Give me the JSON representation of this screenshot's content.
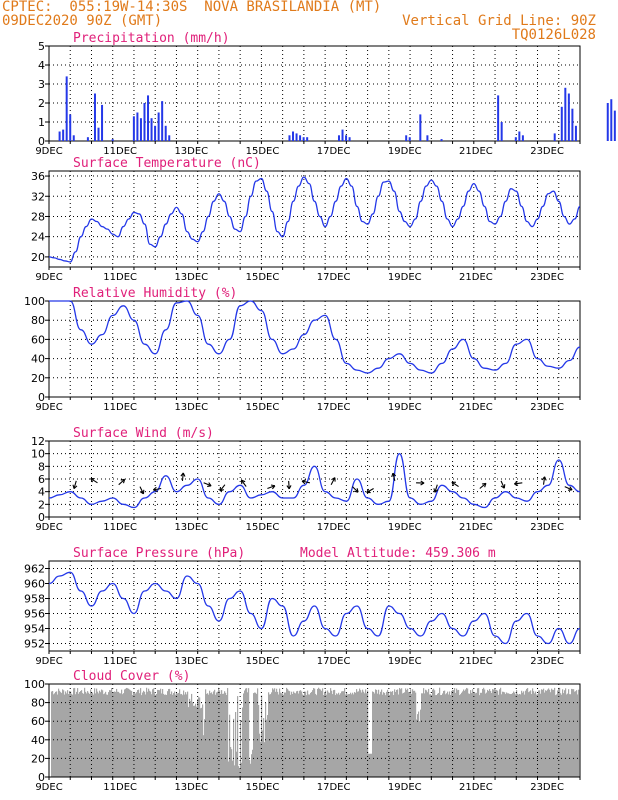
{
  "header": {
    "line1": "CPTEC:  055:19W-14:30S  NOVA BRASILANDIA (MT)",
    "line2_left": "09DEC2020 90Z (GMT)",
    "line2_right": "Vertical Grid Line: 90Z",
    "line3_right": "TQ0126L028"
  },
  "colors": {
    "series": "#2438e8",
    "cloud": "#a6a6a6",
    "title": "#e0207a",
    "header": "#e07a1a",
    "grid": "#000000"
  },
  "x_labels": [
    "9DEC",
    "11DEC",
    "13DEC",
    "15DEC",
    "17DEC",
    "19DEC",
    "21DEC",
    "23DEC"
  ],
  "chart_data": [
    {
      "type": "bar",
      "title": "Precipitation (mm/h)",
      "ylim": [
        0,
        5
      ],
      "yticks": [
        0,
        1,
        2,
        3,
        4,
        5
      ],
      "x": [
        0.3,
        0.4,
        0.5,
        0.6,
        0.7,
        1.1,
        1.3,
        1.4,
        1.5,
        1.8,
        2.4,
        2.5,
        2.6,
        2.7,
        2.8,
        2.9,
        3.0,
        3.1,
        3.2,
        3.3,
        3.4,
        6.8,
        6.9,
        7.0,
        7.1,
        7.2,
        7.3,
        8.2,
        8.3,
        8.4,
        8.5,
        10.1,
        10.2,
        10.5,
        10.7,
        11.1,
        12.7,
        12.8,
        13.2,
        13.3,
        13.4,
        14.3,
        14.5,
        14.6,
        14.7,
        14.8,
        14.9,
        15.8,
        15.9,
        16.0
      ],
      "values": [
        0.5,
        0.6,
        3.4,
        1.4,
        0.3,
        0.2,
        2.5,
        0.7,
        1.9,
        0.1,
        1.3,
        1.5,
        1.2,
        2.0,
        2.4,
        1.2,
        0.8,
        1.5,
        2.1,
        0.8,
        0.3,
        0.3,
        0.5,
        0.4,
        0.3,
        0.2,
        0.2,
        0.3,
        0.6,
        0.3,
        0.2,
        0.3,
        0.2,
        1.4,
        0.3,
        0.1,
        2.4,
        1.0,
        0.2,
        0.5,
        0.3,
        0.4,
        1.8,
        2.8,
        2.5,
        1.7,
        0.8,
        2.0,
        2.2,
        1.6
      ],
      "grid": true
    },
    {
      "type": "line",
      "title": "Surface Temperature (nC)",
      "ylim": [
        18,
        37
      ],
      "yticks": [
        20,
        24,
        28,
        32,
        36
      ],
      "x": [
        0,
        0.5,
        1,
        1.5,
        2,
        2.5,
        3,
        3.5,
        4,
        4.5,
        5,
        5.5,
        6,
        6.5,
        7,
        7.5,
        8,
        8.5,
        9,
        9.5,
        10,
        10.5,
        11,
        11.5,
        12,
        12.5,
        13,
        13.5,
        14,
        14.5,
        15,
        15.5,
        16,
        16.5,
        17,
        17.5,
        18,
        18.5,
        19,
        19.5,
        20,
        20.5,
        21,
        21.5,
        22,
        22.5,
        23,
        23.5,
        24,
        24.5,
        25,
        25.5,
        26,
        26.5,
        27,
        27.5,
        28,
        28.5,
        29,
        29.5,
        30,
        30.5,
        31,
        31.5,
        32,
        32.5,
        33,
        33.5,
        34,
        34.5,
        35,
        35.5,
        36,
        36.5,
        37,
        37.5,
        38,
        38.5,
        39,
        39.5,
        40,
        40.5,
        41,
        41.5,
        42,
        42.5,
        43,
        43.5,
        44,
        44.5,
        45,
        45.5,
        46,
        46.5,
        47,
        47.5,
        48,
        48.5,
        49,
        49.5,
        50
      ],
      "values": [
        20,
        19.8,
        19.5,
        19.2,
        19,
        21,
        24,
        26,
        27.5,
        27,
        26,
        25.5,
        24.5,
        24,
        26,
        27.5,
        28.8,
        28.5,
        26.5,
        22.5,
        22,
        24,
        26.5,
        28.5,
        29.8,
        28.5,
        25,
        23.5,
        23,
        25,
        28,
        31,
        32.5,
        31,
        28,
        25.5,
        25,
        28,
        32,
        35,
        35.5,
        33,
        29,
        25,
        24,
        27,
        31,
        34,
        35.8,
        34.5,
        31,
        28,
        26,
        28,
        31,
        34,
        35.5,
        34,
        30,
        27,
        26.5,
        28.5,
        32,
        34.8,
        35,
        33,
        29,
        27,
        26,
        27.5,
        31,
        34,
        35.2,
        34,
        31,
        27.5,
        26,
        27.5,
        30,
        33,
        34.5,
        33,
        30,
        27,
        26.5,
        28,
        31,
        33.5,
        33,
        30,
        27,
        26,
        27.5,
        30,
        32.5,
        33,
        31,
        28,
        26.5,
        27.5,
        30
      ],
      "grid": true
    },
    {
      "type": "line",
      "title": "Relative Humidity (%)",
      "ylim": [
        0,
        100
      ],
      "yticks": [
        0,
        20,
        40,
        60,
        80,
        100
      ],
      "x": [
        0,
        1,
        2,
        3,
        4,
        5,
        6,
        7,
        8,
        9,
        10,
        11,
        12,
        13,
        14,
        15,
        16,
        17,
        18,
        19,
        20,
        21,
        22,
        23,
        24,
        25,
        26,
        27,
        28,
        29,
        30,
        31,
        32,
        33,
        34,
        35,
        36,
        37,
        38,
        39,
        40,
        41,
        42,
        43,
        44,
        45,
        46,
        47,
        48,
        49,
        50
      ],
      "values": [
        100,
        100,
        100,
        70,
        55,
        65,
        85,
        95,
        80,
        55,
        45,
        70,
        98,
        100,
        85,
        55,
        45,
        60,
        95,
        100,
        90,
        60,
        45,
        50,
        65,
        80,
        85,
        60,
        35,
        28,
        25,
        30,
        40,
        45,
        35,
        28,
        25,
        35,
        50,
        60,
        40,
        30,
        28,
        35,
        55,
        60,
        40,
        32,
        30,
        38,
        52
      ],
      "grid": true
    },
    {
      "type": "line",
      "title": "Surface Wind (m/s)",
      "ylim": [
        0,
        12
      ],
      "yticks": [
        0,
        2,
        4,
        6,
        8,
        10,
        12
      ],
      "x": [
        0,
        1,
        2,
        3,
        4,
        5,
        6,
        7,
        8,
        9,
        10,
        11,
        12,
        13,
        14,
        15,
        16,
        17,
        18,
        19,
        20,
        21,
        22,
        23,
        24,
        25,
        26,
        27,
        28,
        29,
        30,
        31,
        32,
        33,
        34,
        35,
        36,
        37,
        38,
        39,
        40,
        41,
        42,
        43,
        44,
        45,
        46,
        47,
        48,
        49,
        50
      ],
      "values": [
        3,
        3.5,
        4,
        3,
        2,
        2.5,
        3,
        2,
        1.5,
        3,
        4,
        6.5,
        4,
        5,
        6,
        3,
        2,
        4,
        5,
        3,
        3.5,
        4,
        3,
        3,
        5,
        8,
        4,
        3,
        2.5,
        6,
        3,
        2,
        2.5,
        10,
        3,
        2,
        2.5,
        5,
        4,
        3,
        2,
        1.5,
        3,
        4,
        3,
        2.5,
        4,
        5,
        9,
        5,
        4
      ],
      "grid": true
    },
    {
      "type": "line",
      "title": "Surface Pressure (hPa)",
      "annotation": "Model Altitude: 459.306 m",
      "ylim": [
        951,
        963
      ],
      "yticks": [
        952,
        954,
        956,
        958,
        960,
        962
      ],
      "x": [
        0,
        1,
        2,
        3,
        4,
        5,
        6,
        7,
        8,
        9,
        10,
        11,
        12,
        13,
        14,
        15,
        16,
        17,
        18,
        19,
        20,
        21,
        22,
        23,
        24,
        25,
        26,
        27,
        28,
        29,
        30,
        31,
        32,
        33,
        34,
        35,
        36,
        37,
        38,
        39,
        40,
        41,
        42,
        43,
        44,
        45,
        46,
        47,
        48,
        49,
        50
      ],
      "values": [
        960,
        961,
        961.5,
        959,
        957,
        959,
        960,
        958,
        956,
        959,
        960,
        959,
        958,
        961,
        960,
        957,
        955,
        958,
        959,
        956,
        954,
        958,
        957,
        953,
        955,
        957,
        954,
        953,
        956,
        957,
        954,
        953,
        957,
        956,
        954,
        953,
        955,
        956,
        954,
        953,
        955,
        956,
        953,
        952,
        955,
        956,
        953,
        952,
        954,
        952,
        954
      ],
      "grid": true
    },
    {
      "type": "area",
      "title": "Cloud Cover (%)",
      "ylim": [
        0,
        100
      ],
      "yticks": [
        0,
        20,
        40,
        60,
        80,
        100
      ],
      "grid": true
    }
  ]
}
